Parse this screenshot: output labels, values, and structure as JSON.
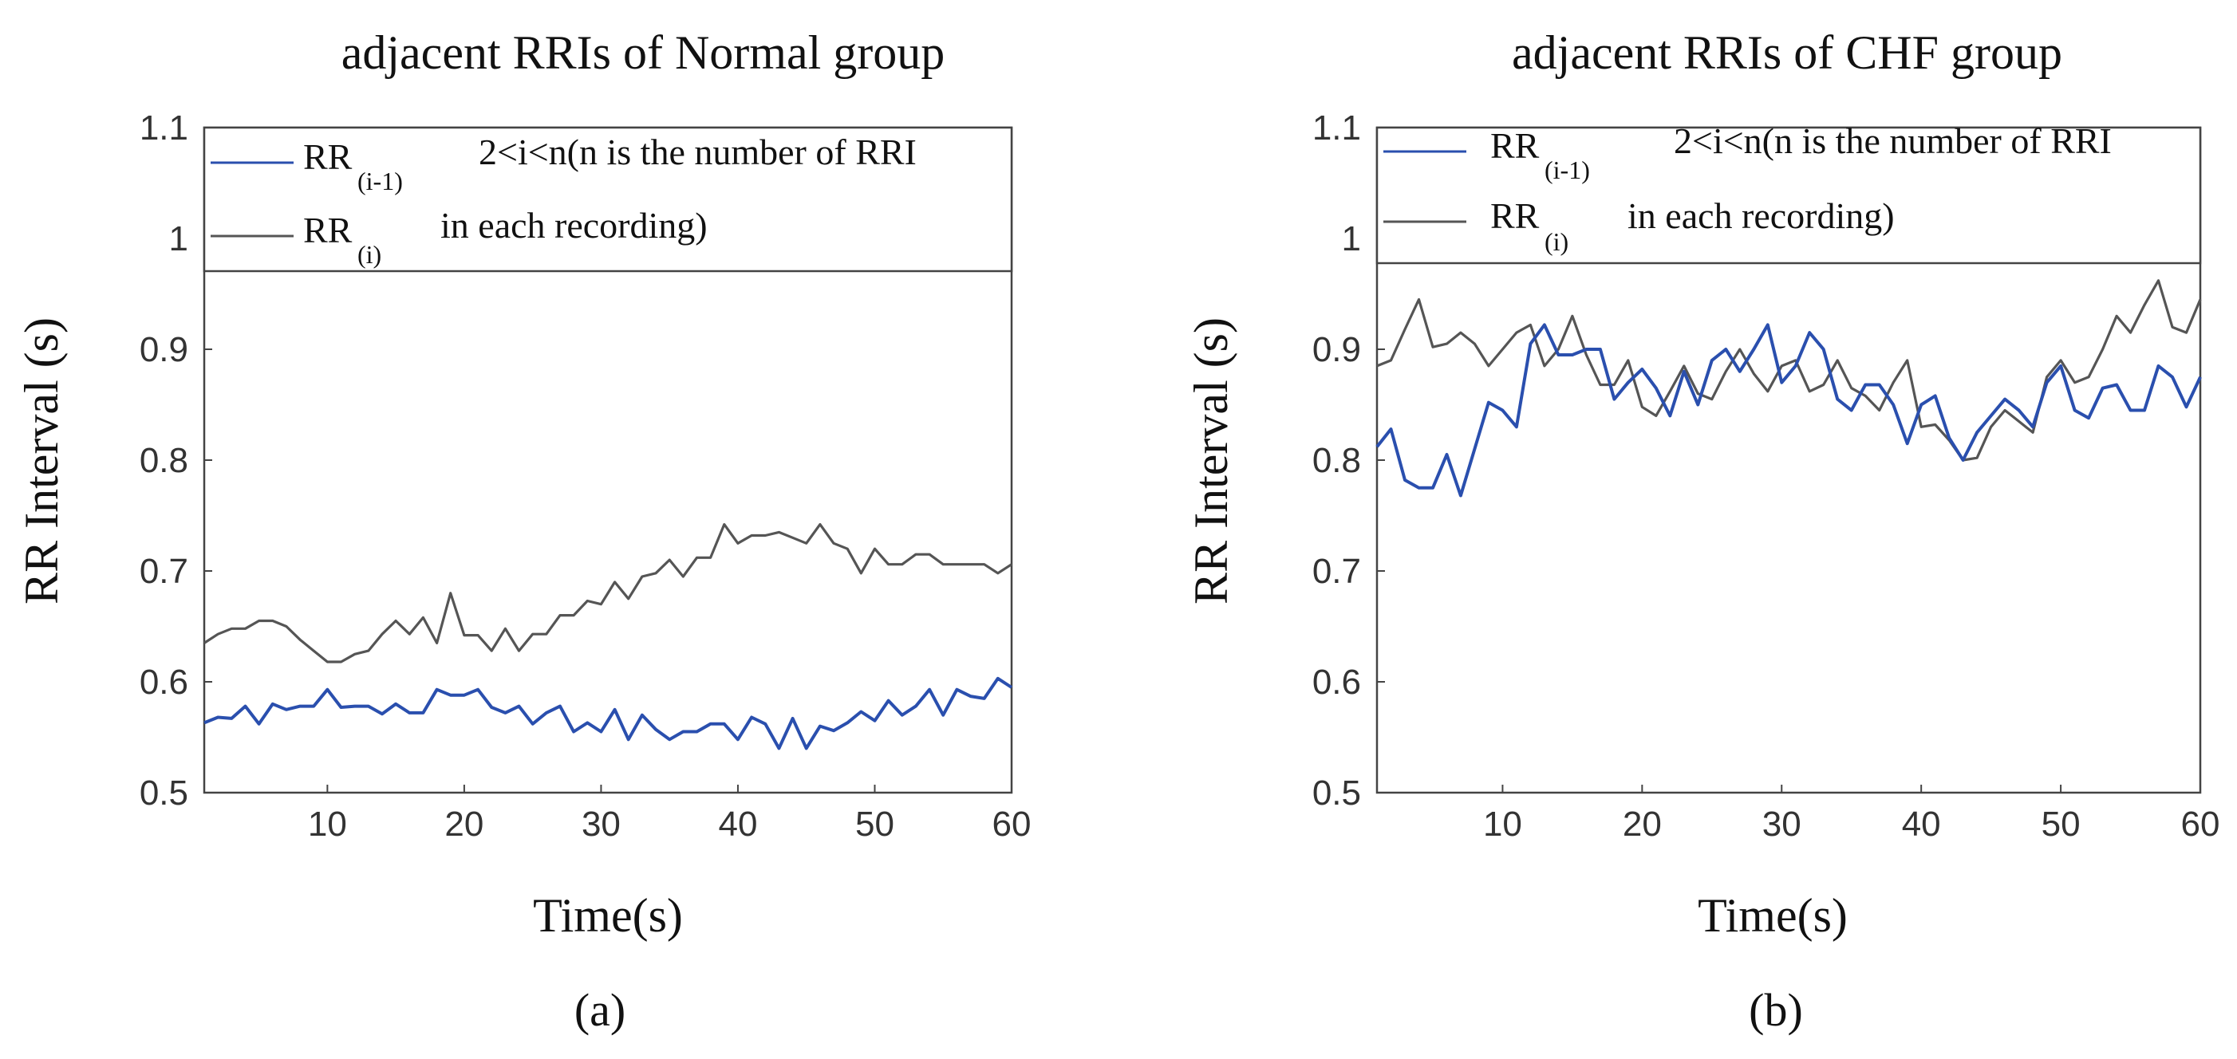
{
  "chart_data": [
    {
      "type": "line",
      "title": "adjacent RRIs of Normal group",
      "xlabel": "Time(s)",
      "ylabel": "RR Interval (s)",
      "caption": "(a)",
      "xlim": [
        1,
        60
      ],
      "ylim": [
        0.5,
        1.1
      ],
      "xticks": [
        "10",
        "20",
        "30",
        "40",
        "50",
        "60"
      ],
      "yticks": [
        "0.5",
        "0.6",
        "0.7",
        "0.8",
        "0.9",
        "1",
        "1.1"
      ],
      "legend": {
        "series1_main": "RR",
        "series1_sub": "(i-1)",
        "series1_note": "2<i<n(n is the number of RRI",
        "series2_main": "RR",
        "series2_sub": "(i)",
        "series2_note": "in each recording)"
      },
      "series": [
        {
          "name": "RR(i-1)",
          "color": "#2a4fae",
          "x": [
            1,
            2,
            3,
            4,
            5,
            6,
            7,
            8,
            9,
            10,
            11,
            12,
            13,
            14,
            15,
            16,
            17,
            18,
            19,
            20,
            21,
            22,
            23,
            24,
            25,
            26,
            27,
            28,
            29,
            30,
            31,
            32,
            33,
            34,
            35,
            36,
            37,
            38,
            39,
            40,
            41,
            42,
            43,
            44,
            45,
            46,
            47,
            48,
            49,
            50,
            51,
            52,
            53,
            54,
            55,
            56,
            57,
            58,
            59,
            60
          ],
          "values": [
            0.563,
            0.568,
            0.567,
            0.578,
            0.562,
            0.58,
            0.575,
            0.578,
            0.578,
            0.593,
            0.577,
            0.578,
            0.578,
            0.571,
            0.58,
            0.572,
            0.572,
            0.593,
            0.588,
            0.588,
            0.593,
            0.577,
            0.572,
            0.578,
            0.562,
            0.572,
            0.578,
            0.555,
            0.563,
            0.555,
            0.575,
            0.548,
            0.57,
            0.557,
            0.548,
            0.555,
            0.555,
            0.562,
            0.562,
            0.548,
            0.568,
            0.562,
            0.54,
            0.567,
            0.54,
            0.56,
            0.556,
            0.563,
            0.573,
            0.565,
            0.583,
            0.57,
            0.578,
            0.593,
            0.57,
            0.593,
            0.587,
            0.585,
            0.603,
            0.595
          ]
        },
        {
          "name": "RR(i)",
          "color": "#555555",
          "x": [
            1,
            2,
            3,
            4,
            5,
            6,
            7,
            8,
            9,
            10,
            11,
            12,
            13,
            14,
            15,
            16,
            17,
            18,
            19,
            20,
            21,
            22,
            23,
            24,
            25,
            26,
            27,
            28,
            29,
            30,
            31,
            32,
            33,
            34,
            35,
            36,
            37,
            38,
            39,
            40,
            41,
            42,
            43,
            44,
            45,
            46,
            47,
            48,
            49,
            50,
            51,
            52,
            53,
            54,
            55,
            56,
            57,
            58,
            59,
            60
          ],
          "values": [
            0.635,
            0.643,
            0.648,
            0.648,
            0.655,
            0.655,
            0.65,
            0.638,
            0.628,
            0.618,
            0.618,
            0.625,
            0.628,
            0.643,
            0.655,
            0.643,
            0.658,
            0.635,
            0.68,
            0.642,
            0.642,
            0.628,
            0.648,
            0.628,
            0.643,
            0.643,
            0.66,
            0.66,
            0.673,
            0.67,
            0.69,
            0.675,
            0.695,
            0.698,
            0.71,
            0.695,
            0.712,
            0.712,
            0.742,
            0.725,
            0.732,
            0.732,
            0.735,
            0.73,
            0.725,
            0.742,
            0.725,
            0.72,
            0.698,
            0.72,
            0.706,
            0.706,
            0.715,
            0.715,
            0.706,
            0.706,
            0.706,
            0.706,
            0.698,
            0.706
          ]
        }
      ]
    },
    {
      "type": "line",
      "title": "adjacent RRIs of CHF group",
      "xlabel": "Time(s)",
      "ylabel": "RR Interval (s)",
      "caption": "(b)",
      "xlim": [
        1,
        60
      ],
      "ylim": [
        0.5,
        1.1
      ],
      "xticks": [
        "10",
        "20",
        "30",
        "40",
        "50",
        "60"
      ],
      "yticks": [
        "0.5",
        "0.6",
        "0.7",
        "0.8",
        "0.9",
        "1",
        "1.1"
      ],
      "legend": {
        "series1_main": "RR",
        "series1_sub": "(i-1)",
        "series1_note": "2<i<n(n is the number of RRI",
        "series2_main": "RR",
        "series2_sub": "(i)",
        "series2_note": "in each recording)"
      },
      "series": [
        {
          "name": "RR(i-1)",
          "color": "#2a4fae",
          "x": [
            1,
            2,
            3,
            4,
            5,
            6,
            7,
            8,
            9,
            10,
            11,
            12,
            13,
            14,
            15,
            16,
            17,
            18,
            19,
            20,
            21,
            22,
            23,
            24,
            25,
            26,
            27,
            28,
            29,
            30,
            31,
            32,
            33,
            34,
            35,
            36,
            37,
            38,
            39,
            40,
            41,
            42,
            43,
            44,
            45,
            46,
            47,
            48,
            49,
            50,
            51,
            52,
            53,
            54,
            55,
            56,
            57,
            58,
            59,
            60
          ],
          "values": [
            0.812,
            0.828,
            0.782,
            0.775,
            0.775,
            0.805,
            0.768,
            0.81,
            0.852,
            0.845,
            0.83,
            0.905,
            0.922,
            0.895,
            0.895,
            0.9,
            0.9,
            0.855,
            0.87,
            0.882,
            0.865,
            0.84,
            0.88,
            0.85,
            0.89,
            0.9,
            0.88,
            0.9,
            0.922,
            0.87,
            0.885,
            0.915,
            0.9,
            0.855,
            0.845,
            0.868,
            0.868,
            0.85,
            0.815,
            0.85,
            0.858,
            0.82,
            0.8,
            0.825,
            0.84,
            0.855,
            0.845,
            0.83,
            0.87,
            0.885,
            0.845,
            0.838,
            0.865,
            0.868,
            0.845,
            0.845,
            0.885,
            0.875,
            0.848,
            0.875
          ]
        },
        {
          "name": "RR(i)",
          "color": "#555555",
          "x": [
            1,
            2,
            3,
            4,
            5,
            6,
            7,
            8,
            9,
            10,
            11,
            12,
            13,
            14,
            15,
            16,
            17,
            18,
            19,
            20,
            21,
            22,
            23,
            24,
            25,
            26,
            27,
            28,
            29,
            30,
            31,
            32,
            33,
            34,
            35,
            36,
            37,
            38,
            39,
            40,
            41,
            42,
            43,
            44,
            45,
            46,
            47,
            48,
            49,
            50,
            51,
            52,
            53,
            54,
            55,
            56,
            57,
            58,
            59,
            60
          ],
          "values": [
            0.885,
            0.89,
            0.918,
            0.945,
            0.902,
            0.905,
            0.915,
            0.905,
            0.885,
            0.9,
            0.915,
            0.922,
            0.885,
            0.9,
            0.93,
            0.895,
            0.868,
            0.868,
            0.89,
            0.848,
            0.84,
            0.862,
            0.885,
            0.86,
            0.855,
            0.88,
            0.9,
            0.878,
            0.862,
            0.885,
            0.89,
            0.862,
            0.868,
            0.89,
            0.865,
            0.858,
            0.845,
            0.87,
            0.89,
            0.83,
            0.832,
            0.818,
            0.8,
            0.802,
            0.83,
            0.845,
            0.835,
            0.825,
            0.875,
            0.89,
            0.87,
            0.875,
            0.9,
            0.93,
            0.915,
            0.94,
            0.962,
            0.92,
            0.915,
            0.945
          ]
        }
      ]
    }
  ]
}
